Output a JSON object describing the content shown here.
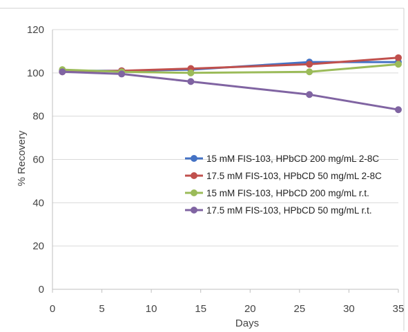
{
  "chart_data": {
    "type": "line",
    "xlabel": "Days",
    "ylabel": "% Recovery",
    "xlim": [
      0,
      35
    ],
    "ylim": [
      0,
      120
    ],
    "xticks": [
      "0",
      "5",
      "10",
      "15",
      "20",
      "25",
      "30",
      "35"
    ],
    "yticks": [
      "0",
      "20",
      "40",
      "60",
      "80",
      "100",
      "120"
    ],
    "grid": "horizontal",
    "legend_position": "center-right",
    "series": [
      {
        "name": "15 mM FIS-103, HPbCD 200 mg/mL 2-8C",
        "color": "#4472c4",
        "x": [
          1,
          7,
          14,
          26,
          35
        ],
        "y": [
          101,
          101,
          101.5,
          105,
          105
        ]
      },
      {
        "name": "17.5 mM FIS-103, HPbCD 50 mg/mL 2-8C",
        "color": "#c0504d",
        "x": [
          1,
          7,
          14,
          26,
          35
        ],
        "y": [
          100.5,
          101,
          102,
          104,
          107
        ]
      },
      {
        "name": "15 mM FIS-103, HPbCD 200 mg/mL r.t.",
        "color": "#9bbb59",
        "x": [
          1,
          7,
          14,
          26,
          35
        ],
        "y": [
          101.5,
          100.5,
          100,
          100.5,
          104
        ]
      },
      {
        "name": "17.5 mM FIS-103, HPbCD 50 mg/mL r.t.",
        "color": "#8064a2",
        "x": [
          1,
          7,
          14,
          26,
          35
        ],
        "y": [
          100.5,
          99.5,
          96,
          90,
          83
        ]
      }
    ]
  }
}
